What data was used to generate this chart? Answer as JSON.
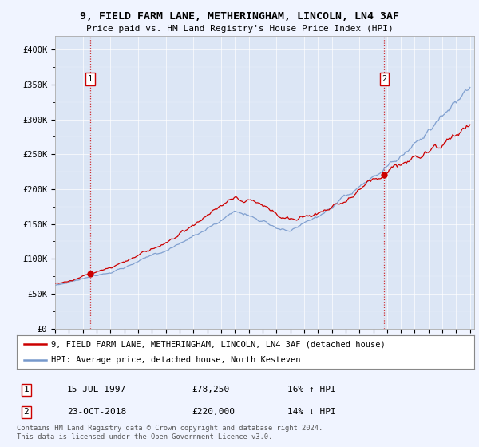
{
  "title_line1": "9, FIELD FARM LANE, METHERINGHAM, LINCOLN, LN4 3AF",
  "title_line2": "Price paid vs. HM Land Registry's House Price Index (HPI)",
  "legend_label_red": "9, FIELD FARM LANE, METHERINGHAM, LINCOLN, LN4 3AF (detached house)",
  "legend_label_blue": "HPI: Average price, detached house, North Kesteven",
  "annotation1_date": "15-JUL-1997",
  "annotation1_price": "£78,250",
  "annotation1_hpi": "16% ↑ HPI",
  "annotation2_date": "23-OCT-2018",
  "annotation2_price": "£220,000",
  "annotation2_hpi": "14% ↓ HPI",
  "footer": "Contains HM Land Registry data © Crown copyright and database right 2024.\nThis data is licensed under the Open Government Licence v3.0.",
  "background_color": "#f0f4ff",
  "plot_bg_color": "#dce6f5",
  "red_color": "#cc0000",
  "blue_color": "#7799cc",
  "sale1_year": 1997.54,
  "sale2_year": 2018.8,
  "sale1_price": 78250,
  "sale2_price": 220000,
  "ylim": [
    0,
    420000
  ],
  "yticks": [
    0,
    50000,
    100000,
    150000,
    200000,
    250000,
    300000,
    350000,
    400000
  ],
  "ytick_labels": [
    "£0",
    "£50K",
    "£100K",
    "£150K",
    "£200K",
    "£250K",
    "£300K",
    "£350K",
    "£400K"
  ],
  "xmin": 1995,
  "xmax": 2025.3
}
